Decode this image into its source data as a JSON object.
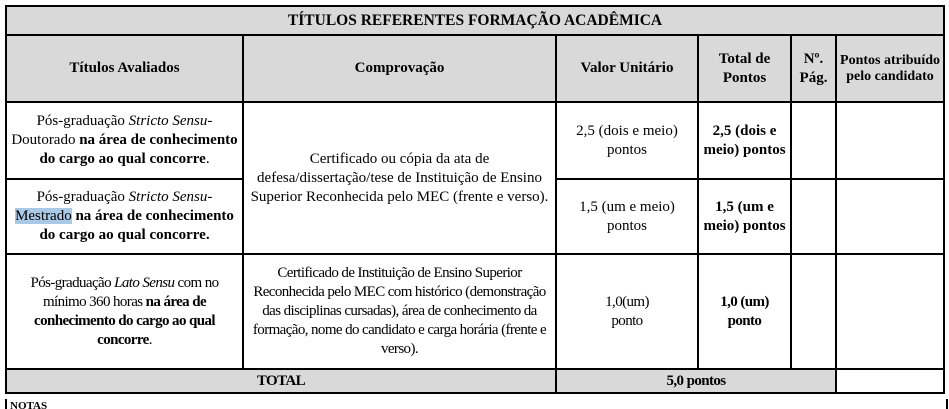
{
  "table": {
    "title": "TÍTULOS REFERENTES FORMAÇÃO ACADÊMICA",
    "headers": [
      "Títulos Avaliados",
      "Comprovação",
      "Valor Unitário",
      "Total de Pontos",
      "Nº. Pág.",
      "Pontos atribuído pelo candidato"
    ],
    "rows": [
      {
        "titulo_a": "Pós-graduação ",
        "titulo_italic": "Stricto Sensu",
        "titulo_b": "-",
        "titulo_c": "Doutorado",
        "titulo_bold": " na área de conhecimento do cargo ao qual concorre",
        "titulo_end": ".",
        "valor": "2,5 (dois e meio) pontos",
        "total": "2,5 (dois e meio) pontos",
        "pag": "",
        "pontos": ""
      },
      {
        "titulo_a": "Pós-graduação ",
        "titulo_italic": "Stricto Sensu",
        "titulo_b": "-",
        "titulo_c": "Mestrado",
        "titulo_bold": " na área de conhecimento do cargo ao qual concorre",
        "titulo_end": ".",
        "valor": "1,5 (um e meio) pontos",
        "total": "1,5 (um e meio) pontos",
        "pag": "",
        "pontos": ""
      },
      {
        "titulo_a": "Pós-graduação ",
        "titulo_italic": "Lato Sensu",
        "titulo_b": " com no mínimo 360 horas",
        "titulo_bold": " na área de conhecimento do cargo ao qual concorre",
        "titulo_end": ".",
        "comprovacao": "Certificado de Instituição de Ensino Superior Reconhecida pelo MEC com histórico (demonstração das disciplinas cursadas), área de conhecimento da formação, nome do candidato e carga horária (frente e verso).",
        "valor": "1,0(um) ponto",
        "total": "1,0 (um) ponto",
        "pag": "",
        "pontos": ""
      }
    ],
    "stricto_comprovacao": "Certificado ou cópia da ata de defesa/dissertação/tese de Instituição de Ensino Superior Reconhecida pelo MEC (frente e verso).",
    "total_label": "TOTAL",
    "total_value": "5,0 pontos"
  },
  "notes_label": "NOTAS"
}
